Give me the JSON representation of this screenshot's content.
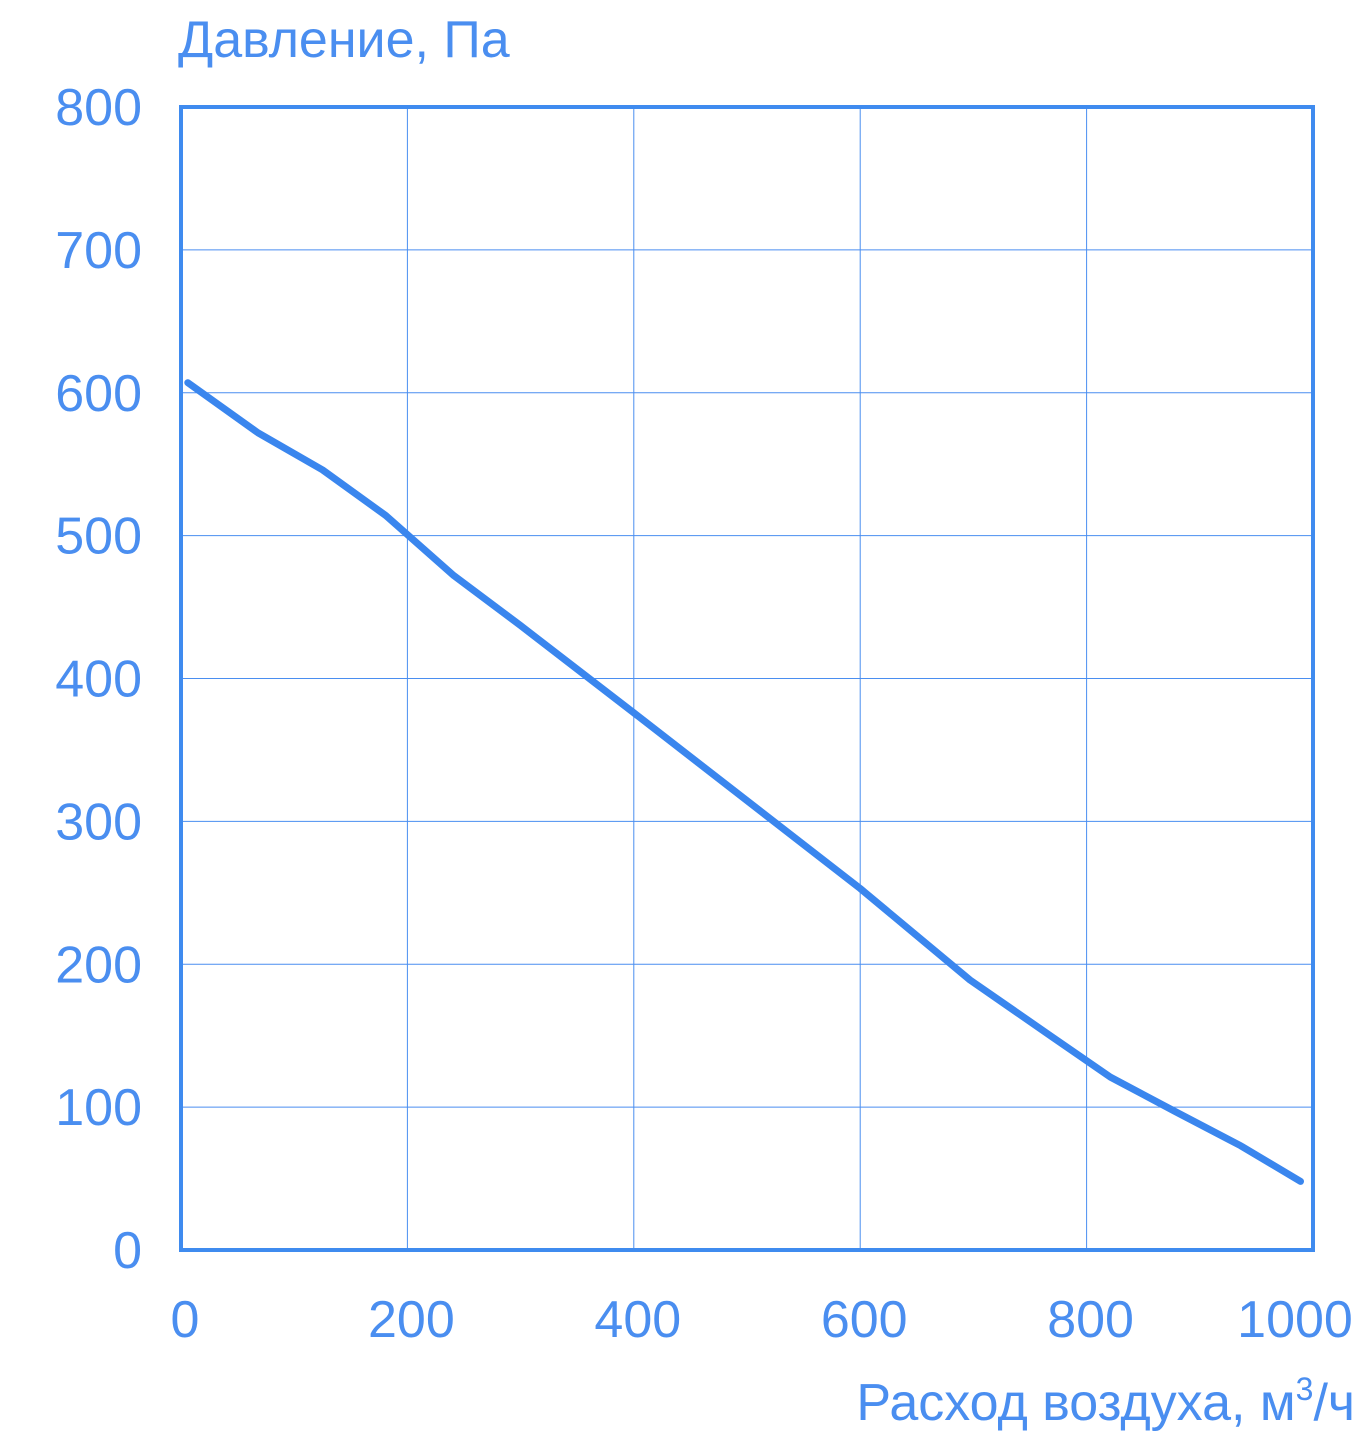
{
  "chart_data": {
    "type": "line",
    "title": "",
    "ylabel": "Давление, Па",
    "xlabel_main": "Расход воздуха, м",
    "xlabel_sup": "3",
    "xlabel_tail": "/ч",
    "xlim": [
      0,
      1000
    ],
    "ylim": [
      0,
      800
    ],
    "xticks": [
      "0",
      "200",
      "400",
      "600",
      "800",
      "1000"
    ],
    "yticks": [
      "0",
      "100",
      "200",
      "300",
      "400",
      "500",
      "600",
      "700",
      "800"
    ],
    "grid": true,
    "colors": {
      "line": "#3a86ee",
      "grid": "#4a8ef0",
      "text": "#4a8ef0"
    },
    "series": [
      {
        "x": [
          6,
          68,
          125,
          181,
          241,
          300,
          400,
          600,
          697,
          768,
          821,
          878,
          936,
          989
        ],
        "y": [
          607,
          572,
          546,
          514,
          472,
          437,
          376,
          253,
          189,
          150,
          121,
          97,
          73,
          48
        ]
      }
    ]
  }
}
